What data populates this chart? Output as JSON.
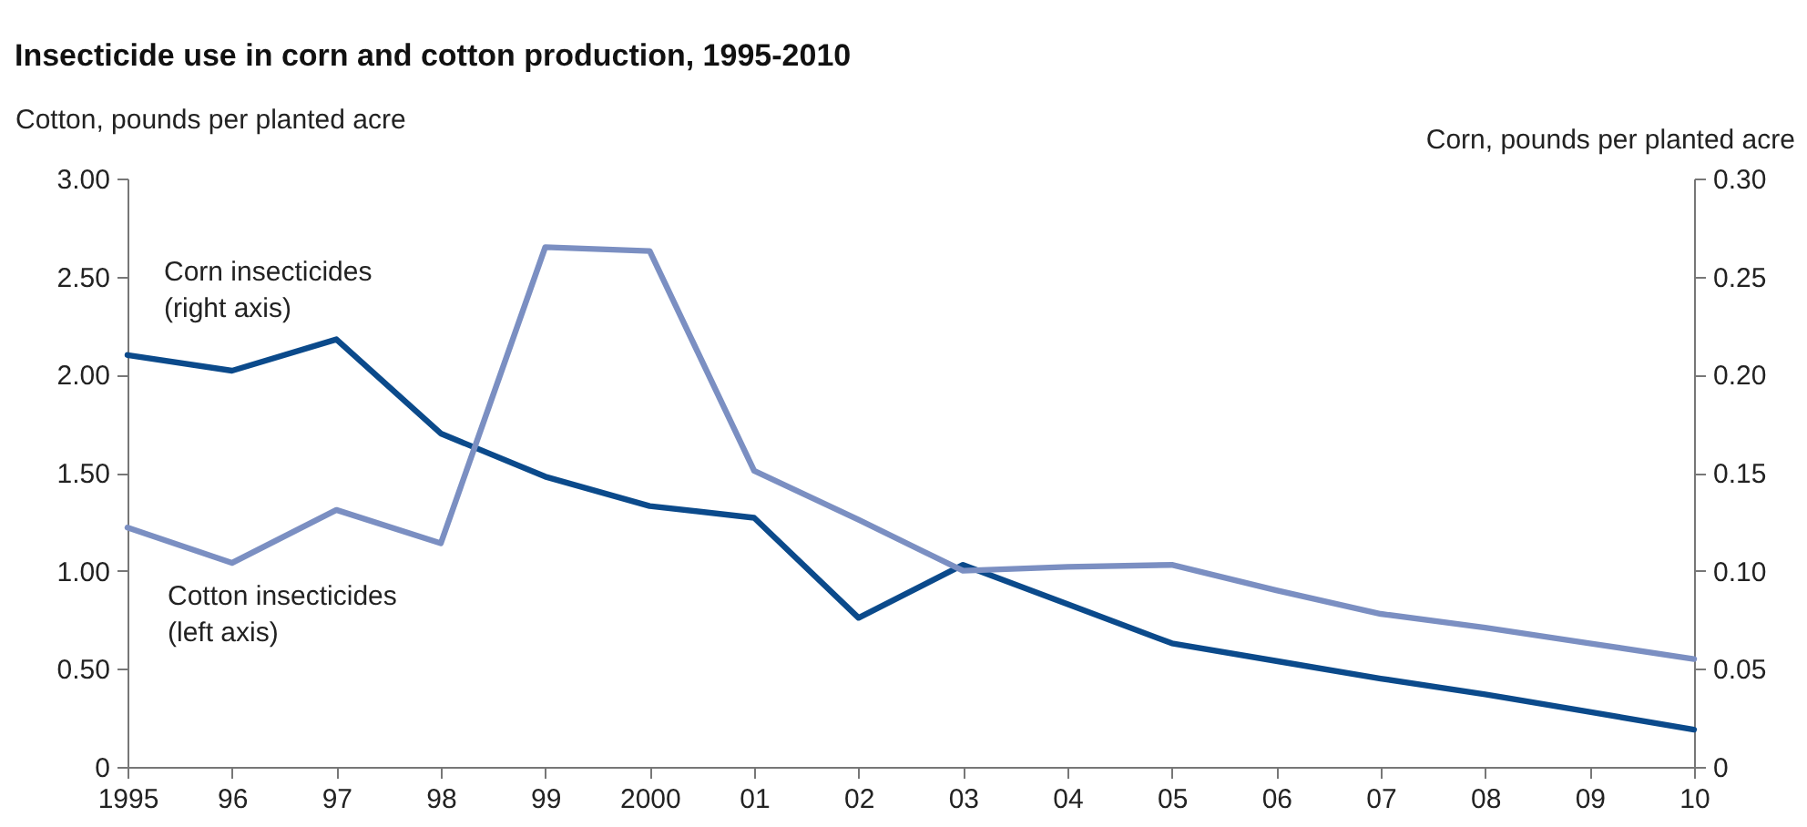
{
  "chart_data": {
    "type": "line",
    "title": "Insecticide use in corn and cotton production, 1995-2010",
    "ylabel": "Cotton, pounds per planted acre",
    "y2label": "Corn, pounds per planted acre",
    "x": [
      1995,
      1996,
      1997,
      1998,
      1999,
      2000,
      2001,
      2002,
      2003,
      2004,
      2005,
      2006,
      2007,
      2008,
      2009,
      2010
    ],
    "series": [
      {
        "color": "#0b4a8b",
        "axis": "y2",
        "values": [
          0.21,
          0.202,
          0.218,
          0.17,
          0.148,
          0.133,
          0.127,
          0.076,
          0.103,
          0.083,
          0.063,
          0.054,
          0.045,
          0.037,
          0.028,
          0.019
        ]
      },
      {
        "color": "#7b8fc2",
        "values": [
          1.22,
          1.04,
          1.31,
          1.14,
          2.65,
          2.63,
          1.51,
          1.26,
          1.0,
          1.02,
          1.03,
          0.9,
          0.78,
          0.71,
          0.63,
          0.55
        ]
      }
    ],
    "annotations": [
      "Corn insecticides\n(right axis)",
      "Cotton insecticides\n(left axis)"
    ],
    "xlim": [
      1995,
      2010
    ],
    "xticks": [
      1995,
      {
        "value": 1996,
        "label": "96"
      },
      {
        "value": 1997,
        "label": "97"
      },
      {
        "value": 1998,
        "label": "98"
      },
      {
        "value": 1999,
        "label": "99"
      },
      2000,
      {
        "value": 2001,
        "label": "01"
      },
      {
        "value": 2002,
        "label": "02"
      },
      {
        "value": 2003,
        "label": "03"
      },
      {
        "value": 2004,
        "label": "04"
      },
      {
        "value": 2005,
        "label": "05"
      },
      {
        "value": 2006,
        "label": "06"
      },
      {
        "value": 2007,
        "label": "07"
      },
      {
        "value": 2008,
        "label": "08"
      },
      {
        "value": 2009,
        "label": "09"
      },
      {
        "value": 2010,
        "label": "10"
      }
    ],
    "ylim": [
      0,
      3
    ],
    "yticks": [
      {
        "value": 0,
        "label": "0"
      },
      {
        "value": 0.5,
        "label": "0.50"
      },
      {
        "value": 1,
        "label": "1.00"
      },
      {
        "value": 1.5,
        "label": "1.50"
      },
      {
        "value": 2,
        "label": "2.00"
      },
      {
        "value": 2.5,
        "label": "2.50"
      },
      {
        "value": 3,
        "label": "3.00"
      }
    ],
    "y2lim": [
      0,
      0.3
    ],
    "y2ticks": [
      {
        "value": 0,
        "label": "0"
      },
      {
        "value": 0.05,
        "label": "0.05"
      },
      {
        "value": 0.1,
        "label": "0.10"
      },
      {
        "value": 0.15,
        "label": "0.15"
      },
      {
        "value": 0.2,
        "label": "0.20"
      },
      {
        "value": 0.25,
        "label": "0.25"
      },
      {
        "value": 0.3,
        "label": "0.30"
      }
    ],
    "grid": false,
    "marker": "none",
    "line_style": "solid"
  }
}
